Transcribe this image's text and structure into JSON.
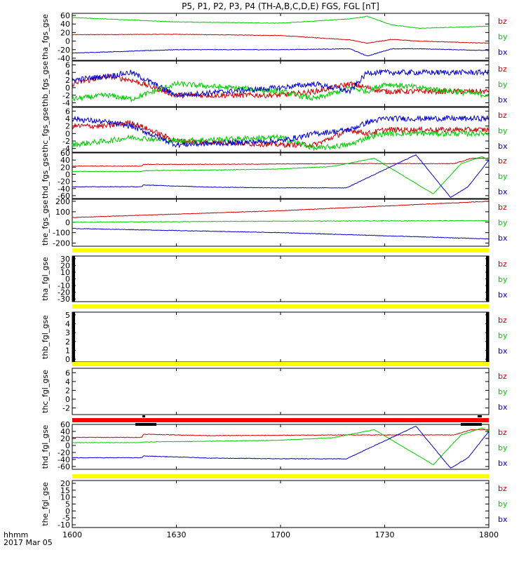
{
  "title": "P5, P1, P2, P3, P4 (TH-A,B,C,D,E) FGS, FGL [nT]",
  "colors": {
    "bz": "#cc0000",
    "by": "#00cc00",
    "bx": "#0000cc",
    "bar_yellow": "#ffff00",
    "bar_red": "#ff0000",
    "bar_black": "#000000",
    "axis": "#000000"
  },
  "footer": {
    "hhmm_label": "hhmm",
    "date_label": "2017 Mar 05"
  },
  "chart_data": [
    {
      "panel": 1,
      "type": "line",
      "ylabel": "tha_fgs_gse",
      "x_range": [
        "16:00",
        "18:00"
      ],
      "x_ticks": [
        "1600",
        "1630",
        "1700",
        "1730",
        "1800"
      ],
      "y_ticks": [
        60,
        40,
        20,
        0,
        -20,
        -40
      ],
      "ylim": [
        -45,
        65
      ],
      "legend": [
        "bz",
        "by",
        "bx"
      ],
      "series": [
        {
          "name": "bz",
          "x_min": [
            0,
            30,
            60,
            80,
            85,
            92,
            100,
            120
          ],
          "values": [
            15,
            16,
            13,
            3,
            -5,
            4,
            0,
            -5
          ]
        },
        {
          "name": "by",
          "x_min": [
            0,
            30,
            60,
            80,
            85,
            92,
            100,
            120
          ],
          "values": [
            55,
            45,
            42,
            52,
            58,
            38,
            30,
            35
          ]
        },
        {
          "name": "bx",
          "x_min": [
            0,
            30,
            60,
            80,
            85,
            92,
            100,
            120
          ],
          "values": [
            -28,
            -20,
            -20,
            -18,
            -35,
            -18,
            -18,
            -22
          ]
        }
      ]
    },
    {
      "panel": 2,
      "type": "line",
      "ylabel": "thb_fgs_gse",
      "y_ticks": [
        6,
        4,
        2,
        0,
        -2,
        -4
      ],
      "ylim": [
        -5,
        7
      ],
      "legend": [
        "bz",
        "by",
        "bx"
      ],
      "series": [
        {
          "name": "bz",
          "x_min": [
            0,
            10,
            17,
            30,
            60,
            70,
            80,
            85,
            90,
            120
          ],
          "values": [
            1,
            3,
            2,
            -2,
            -2,
            -1,
            1,
            0,
            -1,
            -1
          ]
        },
        {
          "name": "by",
          "x_min": [
            0,
            10,
            17,
            30,
            60,
            70,
            80,
            85,
            90,
            120
          ],
          "values": [
            -3,
            -2,
            -3,
            1,
            -1,
            -3,
            0,
            -1,
            1,
            -2
          ]
        },
        {
          "name": "bx",
          "x_min": [
            0,
            10,
            17,
            30,
            60,
            70,
            80,
            85,
            90,
            120
          ],
          "values": [
            2,
            3,
            4,
            -2,
            0,
            1,
            -1,
            4,
            4,
            4
          ]
        }
      ]
    },
    {
      "panel": 3,
      "type": "line",
      "ylabel": "thc_fgs_gse",
      "y_ticks": [
        6,
        4,
        2,
        0,
        -2,
        -4
      ],
      "ylim": [
        -5,
        7
      ],
      "legend": [
        "bz",
        "by",
        "bx"
      ],
      "series": [
        {
          "name": "bz",
          "x_min": [
            0,
            10,
            17,
            30,
            60,
            70,
            80,
            85,
            90,
            120
          ],
          "values": [
            2,
            2,
            3,
            -2,
            -3,
            -3,
            1,
            0,
            1,
            1
          ]
        },
        {
          "name": "by",
          "x_min": [
            0,
            10,
            17,
            30,
            60,
            70,
            80,
            85,
            90,
            120
          ],
          "values": [
            -3,
            -2,
            -1,
            -2,
            -1,
            -4,
            -3,
            -1,
            0,
            0
          ]
        },
        {
          "name": "bx",
          "x_min": [
            0,
            10,
            17,
            30,
            60,
            70,
            80,
            85,
            90,
            120
          ],
          "values": [
            4,
            3,
            2,
            -3,
            -2,
            0,
            1,
            3,
            4,
            4
          ]
        }
      ]
    },
    {
      "panel": 4,
      "type": "line",
      "ylabel": "thd_fgs_gse",
      "y_ticks": [
        60,
        40,
        20,
        0,
        -20,
        -40,
        -60
      ],
      "ylim": [
        -68,
        60
      ],
      "legend": [
        "bz",
        "by",
        "bx"
      ],
      "series": [
        {
          "name": "bz",
          "x_min": [
            0,
            20,
            20.5,
            40,
            60,
            80,
            90,
            100,
            110,
            115,
            120
          ],
          "values": [
            23,
            23,
            28,
            28,
            29,
            30,
            30,
            30,
            30,
            45,
            45
          ]
        },
        {
          "name": "by",
          "x_min": [
            0,
            20,
            20.5,
            40,
            60,
            75,
            87,
            104,
            112,
            118,
            120
          ],
          "values": [
            8,
            8,
            10,
            12,
            15,
            22,
            45,
            -55,
            30,
            50,
            40
          ]
        },
        {
          "name": "bx",
          "x_min": [
            0,
            20,
            20.5,
            40,
            60,
            79,
            99,
            109,
            114,
            118,
            120
          ],
          "values": [
            -35,
            -35,
            -30,
            -36,
            -38,
            -38,
            55,
            -65,
            -35,
            15,
            40
          ]
        }
      ]
    },
    {
      "panel": 5,
      "type": "line",
      "ylabel": "the_fgs_gse",
      "y_ticks": [
        200,
        100,
        0,
        -100,
        -200
      ],
      "ylim": [
        -230,
        220
      ],
      "legend": [
        "bz",
        "by",
        "bx"
      ],
      "series": [
        {
          "name": "bz",
          "x_min": [
            0,
            60,
            120
          ],
          "values": [
            45,
            110,
            200
          ]
        },
        {
          "name": "by",
          "x_min": [
            0,
            60,
            120
          ],
          "values": [
            0,
            10,
            15
          ]
        },
        {
          "name": "bx",
          "x_min": [
            0,
            60,
            120
          ],
          "values": [
            -60,
            -100,
            -160
          ]
        }
      ]
    },
    {
      "panel": 6,
      "type": "line",
      "ylabel": "tha_fgl_gse",
      "y_ticks": [
        30,
        20,
        10,
        0,
        -10,
        -20,
        -30
      ],
      "ylim": [
        -34,
        34
      ],
      "legend": [
        "bz",
        "by",
        "bx"
      ],
      "series": []
    },
    {
      "panel": 7,
      "type": "line",
      "ylabel": "thb_fgl_gse",
      "y_ticks": [
        5,
        4,
        3,
        2,
        1,
        0
      ],
      "ylim": [
        -0.3,
        5.3
      ],
      "legend": [
        "bz",
        "by",
        "bx"
      ],
      "series": []
    },
    {
      "panel": 8,
      "type": "line",
      "ylabel": "thc_fgl_gse",
      "y_ticks": [
        6,
        4,
        2,
        0,
        -2
      ],
      "ylim": [
        -3.5,
        7
      ],
      "legend": [
        "bz",
        "by",
        "bx"
      ],
      "series": []
    },
    {
      "panel": 9,
      "type": "line",
      "ylabel": "thd_fgl_gse",
      "y_ticks": [
        60,
        40,
        20,
        0,
        -20,
        -40,
        -60
      ],
      "ylim": [
        -68,
        60
      ],
      "legend": [
        "bz",
        "by",
        "bx"
      ],
      "series": [
        {
          "name": "bz",
          "x_min": [
            0,
            20,
            20.5,
            40,
            60,
            80,
            90,
            100,
            110,
            115,
            120
          ],
          "values": [
            23,
            23,
            32,
            28,
            29,
            30,
            30,
            30,
            30,
            45,
            45
          ]
        },
        {
          "name": "by",
          "x_min": [
            0,
            20,
            20.5,
            40,
            60,
            75,
            87,
            104,
            112,
            118,
            120
          ],
          "values": [
            8,
            8,
            10,
            12,
            15,
            22,
            45,
            -55,
            30,
            50,
            40
          ]
        },
        {
          "name": "bx",
          "x_min": [
            0,
            20,
            20.5,
            40,
            60,
            79,
            99,
            109,
            114,
            118,
            120
          ],
          "values": [
            -35,
            -35,
            -30,
            -36,
            -38,
            -38,
            55,
            -65,
            -35,
            15,
            40
          ]
        }
      ]
    },
    {
      "panel": 10,
      "type": "line",
      "ylabel": "the_fgl_gse",
      "y_ticks": [
        20,
        15,
        10,
        5,
        0,
        -5,
        -10
      ],
      "ylim": [
        -12,
        22
      ],
      "legend": [
        "bz",
        "by",
        "bx"
      ],
      "series": []
    }
  ]
}
